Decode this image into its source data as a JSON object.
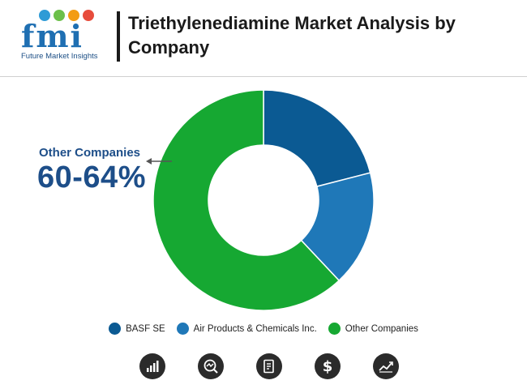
{
  "brand": {
    "logo_text": "fmi",
    "name": "Future Market Insights",
    "dot_colors": [
      "#2e9bd6",
      "#6cc04a",
      "#f39c12",
      "#e74c3c"
    ]
  },
  "header": {
    "title": "Triethylenediamine Market Analysis by Company"
  },
  "callout": {
    "label": "Other Companies",
    "value": "60-64%"
  },
  "chart_data": {
    "type": "pie",
    "donut": true,
    "title": "Triethylenediamine Market Analysis by Company",
    "series": [
      {
        "name": "BASF SE",
        "value": 21,
        "color": "#0b5a93"
      },
      {
        "name": "Air Products & Chemicals Inc.",
        "value": 17,
        "color": "#1f78b8"
      },
      {
        "name": "Other Companies",
        "value": 62,
        "color": "#16a832"
      }
    ],
    "annotation": {
      "label": "Other Companies",
      "value": "60-64%"
    },
    "legend_position": "bottom"
  },
  "footer_icons": [
    "bar-chart-icon",
    "magnify-chart-icon",
    "document-icon",
    "dollar-icon",
    "trend-line-icon"
  ]
}
